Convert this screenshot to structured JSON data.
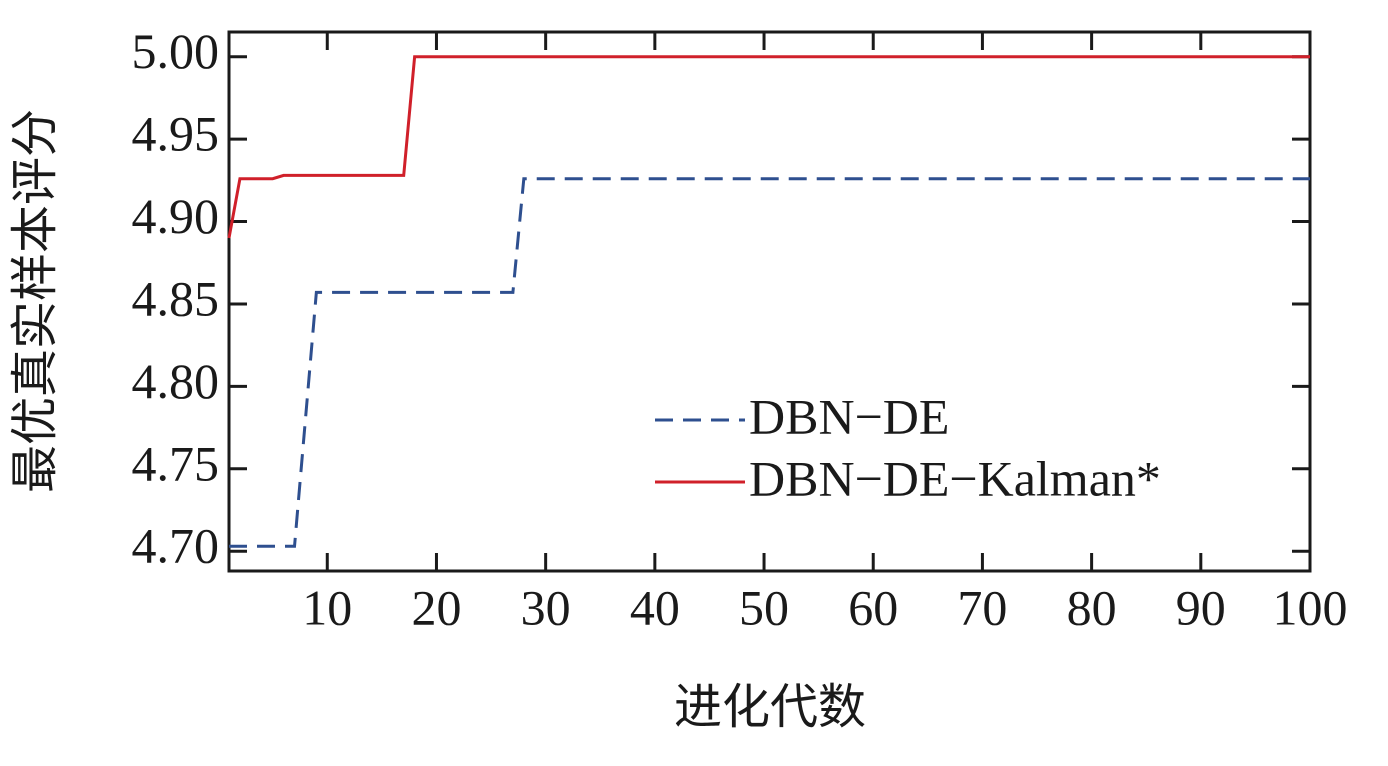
{
  "chart_data": {
    "type": "line",
    "xlabel": "进化代数",
    "ylabel": "最优真实样本评分",
    "xlim": [
      1,
      100
    ],
    "xticks": [
      10,
      20,
      30,
      40,
      50,
      60,
      70,
      80,
      90,
      100
    ],
    "ylim": [
      4.688,
      5.015
    ],
    "yticks": [
      {
        "value": 4.7,
        "label": "4.70"
      },
      {
        "value": 4.75,
        "label": "4.75"
      },
      {
        "value": 4.8,
        "label": "4.80"
      },
      {
        "value": 4.85,
        "label": "4.85"
      },
      {
        "value": 4.9,
        "label": "4.90"
      },
      {
        "value": 4.95,
        "label": "4.95"
      },
      {
        "value": 5.0,
        "label": "5.00"
      }
    ],
    "legend": "lower right",
    "series": [
      {
        "name": "DBN−DE",
        "color": "#2e4f8f",
        "dash": true,
        "x": [
          1,
          7,
          9,
          27,
          28,
          100
        ],
        "values": [
          4.703,
          4.703,
          4.857,
          4.857,
          4.926,
          4.926
        ]
      },
      {
        "name": "DBN−DE−Kalman*",
        "color": "#d0202a",
        "dash": false,
        "x": [
          1,
          2,
          5,
          6,
          17,
          18,
          100
        ],
        "values": [
          4.89,
          4.926,
          4.926,
          4.928,
          4.928,
          5.0,
          5.0
        ]
      }
    ]
  }
}
